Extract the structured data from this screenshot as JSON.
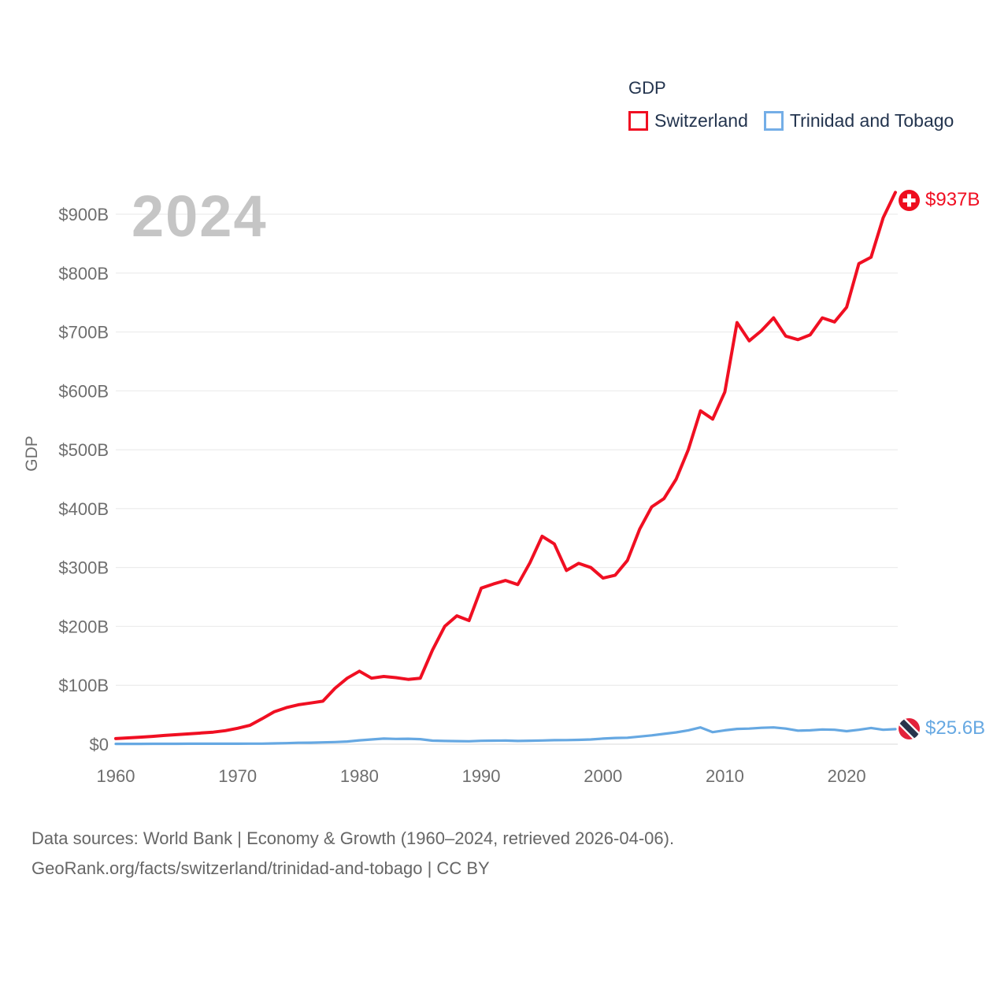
{
  "watermark": "2024",
  "legend": {
    "title": "GDP",
    "series": [
      {
        "label": "Switzerland",
        "color": "#f00f22"
      },
      {
        "label": "Trinidad and Tobago",
        "color": "#66a8e2"
      }
    ]
  },
  "y_axis": {
    "title": "GDP",
    "ticks": [
      {
        "label": "$0",
        "value": 0
      },
      {
        "label": "$100B",
        "value": 100
      },
      {
        "label": "$200B",
        "value": 200
      },
      {
        "label": "$300B",
        "value": 300
      },
      {
        "label": "$400B",
        "value": 400
      },
      {
        "label": "$500B",
        "value": 500
      },
      {
        "label": "$600B",
        "value": 600
      },
      {
        "label": "$700B",
        "value": 700
      },
      {
        "label": "$800B",
        "value": 800
      },
      {
        "label": "$900B",
        "value": 900
      }
    ]
  },
  "x_axis": {
    "ticks": [
      {
        "label": "1960",
        "value": 1960
      },
      {
        "label": "1970",
        "value": 1970
      },
      {
        "label": "1980",
        "value": 1980
      },
      {
        "label": "1990",
        "value": 1990
      },
      {
        "label": "2000",
        "value": 2000
      },
      {
        "label": "2010",
        "value": 2010
      },
      {
        "label": "2020",
        "value": 2020
      }
    ]
  },
  "end_labels": {
    "switzerland": "$937B",
    "trinidad": "$25.6B"
  },
  "footer": {
    "line1": "Data sources: World Bank | Economy & Growth (1960–2024, retrieved 2026-04-06).",
    "line2": "GeoRank.org/facts/switzerland/trinidad-and-tobago | CC BY"
  },
  "chart_data": {
    "type": "line",
    "title": "GDP",
    "xlabel": "",
    "ylabel": "GDP",
    "x_range": [
      1960,
      2024
    ],
    "ylim": [
      0,
      950
    ],
    "grid": true,
    "legend_position": "top-right",
    "x": [
      1960,
      1961,
      1962,
      1963,
      1964,
      1965,
      1966,
      1967,
      1968,
      1969,
      1970,
      1971,
      1972,
      1973,
      1974,
      1975,
      1976,
      1977,
      1978,
      1979,
      1980,
      1981,
      1982,
      1983,
      1984,
      1985,
      1986,
      1987,
      1988,
      1989,
      1990,
      1991,
      1992,
      1993,
      1994,
      1995,
      1996,
      1997,
      1998,
      1999,
      2000,
      2001,
      2002,
      2003,
      2004,
      2005,
      2006,
      2007,
      2008,
      2009,
      2010,
      2011,
      2012,
      2013,
      2014,
      2015,
      2016,
      2017,
      2018,
      2019,
      2020,
      2021,
      2022,
      2023,
      2024
    ],
    "series": [
      {
        "name": "Switzerland",
        "color": "#f00f22",
        "end_label": "$937B",
        "values": [
          9.5,
          10.7,
          11.9,
          13.2,
          14.8,
          16.2,
          17.5,
          19,
          20.5,
          23,
          27,
          32,
          43,
          55,
          62,
          67,
          70,
          73,
          95,
          112,
          124,
          112,
          115,
          113,
          110,
          112,
          160,
          200,
          218,
          210,
          265,
          272,
          278,
          271,
          308,
          353,
          340,
          295,
          307,
          300,
          282,
          287,
          312,
          365,
          403,
          417,
          450,
          500,
          566,
          552,
          598,
          716,
          685,
          702,
          724,
          693,
          687,
          695,
          724,
          717,
          742,
          816,
          827,
          894,
          937
        ]
      },
      {
        "name": "Trinidad and Tobago",
        "color": "#66a8e2",
        "end_label": "$25.6B",
        "values": [
          0.5,
          0.6,
          0.6,
          0.7,
          0.7,
          0.7,
          0.8,
          0.8,
          0.8,
          0.8,
          0.8,
          0.9,
          1.0,
          1.3,
          1.8,
          2.4,
          2.5,
          3.1,
          3.6,
          4.6,
          6.5,
          8.0,
          9.5,
          9.0,
          9.2,
          8.5,
          6.0,
          5.5,
          5.2,
          5.0,
          5.8,
          6.0,
          6.2,
          5.5,
          5.9,
          6.3,
          6.8,
          7.0,
          7.3,
          8.0,
          9.5,
          10.5,
          11.0,
          13.0,
          15.0,
          17.5,
          20.0,
          23.5,
          28.5,
          20.5,
          23.5,
          26.0,
          26.5,
          27.8,
          28.5,
          26.5,
          23.0,
          23.5,
          25.0,
          24.5,
          22.0,
          24.5,
          27.5,
          24.5,
          25.6
        ]
      }
    ]
  }
}
